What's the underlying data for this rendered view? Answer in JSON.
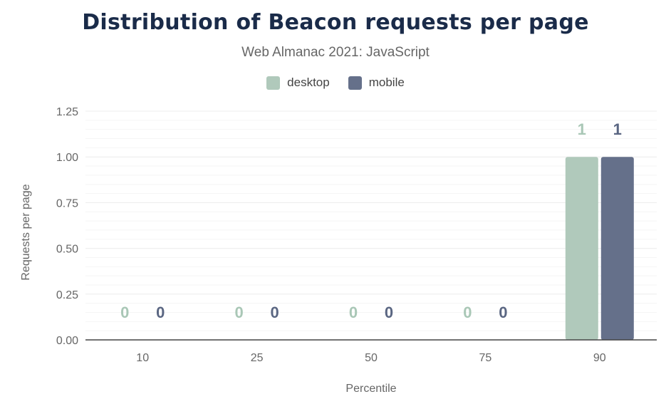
{
  "chart_data": {
    "type": "bar",
    "title": "Distribution of Beacon requests per page",
    "subtitle": "Web Almanac 2021: JavaScript",
    "xlabel": "Percentile",
    "ylabel": "Requests per page",
    "categories": [
      "10",
      "25",
      "50",
      "75",
      "90"
    ],
    "series": [
      {
        "name": "desktop",
        "color": "#b0c9bb",
        "values": [
          0,
          0,
          0,
          0,
          1
        ]
      },
      {
        "name": "mobile",
        "color": "#65708a",
        "values": [
          0,
          0,
          0,
          0,
          1
        ]
      }
    ],
    "ylim": [
      0,
      1.25
    ],
    "yticks": [
      "0.00",
      "0.25",
      "0.50",
      "0.75",
      "1.00",
      "1.25"
    ],
    "grid": true,
    "legend": "top-center",
    "label_colors": {
      "desktop": "#a9c7b6",
      "mobile": "#5a6682"
    }
  }
}
